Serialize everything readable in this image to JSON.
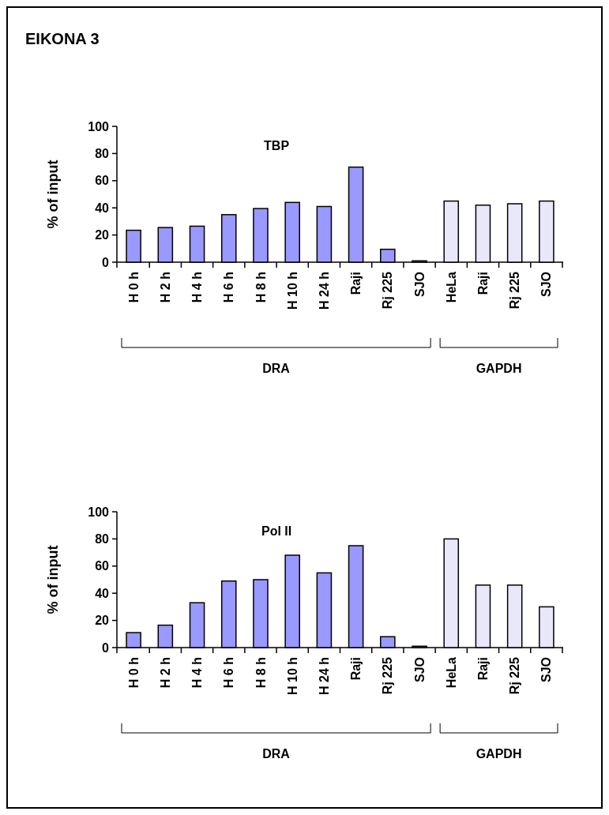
{
  "chart_data": [
    {
      "type": "bar",
      "title": "TBP",
      "ylabel": "% of input",
      "categories": [
        "H 0 h",
        "H 2 h",
        "H 4 h",
        "H 6 h",
        "H 8 h",
        "H 10 h",
        "H 24 h",
        "Raji",
        "Rj 225",
        "SJO",
        "HeLa",
        "Raji",
        "Rj 225",
        "SJO"
      ],
      "values": [
        23.5,
        25.5,
        26.5,
        35,
        39.5,
        44,
        41,
        70,
        9.5,
        1,
        45,
        42,
        43,
        45
      ],
      "colors": [
        "#9999ff",
        "#9999ff",
        "#9999ff",
        "#9999ff",
        "#9999ff",
        "#9999ff",
        "#9999ff",
        "#9999ff",
        "#9999ff",
        "#9999ff",
        "#e8e8fa",
        "#e8e8fa",
        "#e8e8fa",
        "#e8e8fa"
      ],
      "ylim": [
        0,
        100
      ],
      "yticks": [
        0,
        20,
        40,
        60,
        80,
        100
      ],
      "annotations": [
        "DRA",
        "GAPDH",
        "EIKONA 3"
      ]
    },
    {
      "type": "bar",
      "title": "Pol II",
      "ylabel": "% of input",
      "categories": [
        "H 0 h",
        "H 2 h",
        "H 4 h",
        "H 6 h",
        "H 8 h",
        "H 10 h",
        "H 24 h",
        "Raji",
        "Rj 225",
        "SJO",
        "HeLa",
        "Raji",
        "Rj 225",
        "SJO"
      ],
      "values": [
        11,
        16.5,
        33,
        49,
        50,
        68,
        55,
        75,
        8,
        1,
        80,
        46,
        46,
        30
      ],
      "colors": [
        "#9999ff",
        "#9999ff",
        "#9999ff",
        "#9999ff",
        "#9999ff",
        "#9999ff",
        "#9999ff",
        "#9999ff",
        "#9999ff",
        "#9999ff",
        "#e8e8fa",
        "#e8e8fa",
        "#e8e8fa",
        "#e8e8fa"
      ],
      "ylim": [
        0,
        100
      ],
      "yticks": [
        0,
        20,
        40,
        60,
        80,
        100
      ],
      "annotations": [
        "DRA",
        "GAPDH"
      ]
    }
  ]
}
